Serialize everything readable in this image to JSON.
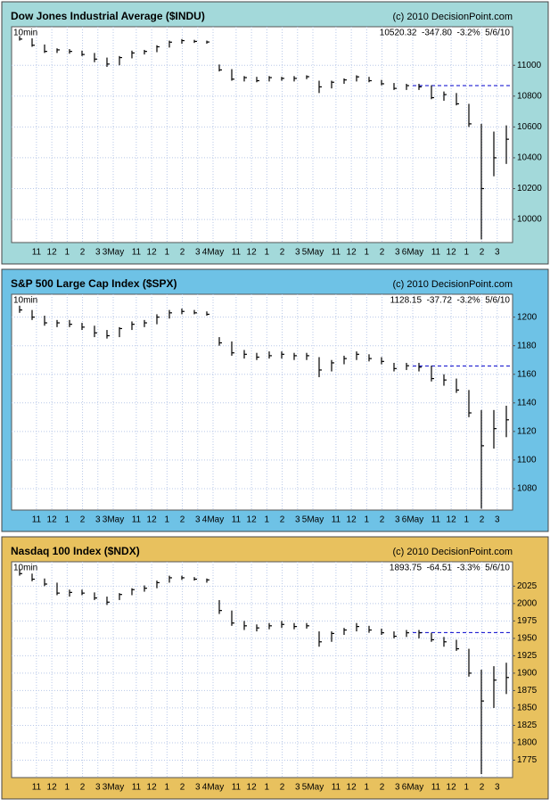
{
  "chart_data": [
    {
      "type": "hlc",
      "title": "Dow Jones Industrial Average ($INDU)",
      "copyright": "(c) 2010 DecisionPoint.com",
      "interval": "10min",
      "stats": "10520.32  -347.80  -3.2%  5/6/10",
      "panel_color": "#a3d9da",
      "color": "#000000",
      "high": [
        11190,
        11175,
        11135,
        11110,
        11105,
        11095,
        11080,
        11050,
        11060,
        11095,
        11100,
        11130,
        11160,
        11170,
        11165,
        11160,
        11005,
        10975,
        10930,
        10925,
        10930,
        10925,
        10930,
        10935,
        10900,
        10900,
        10915,
        10935,
        10925,
        10905,
        10885,
        10880,
        10880,
        10870,
        10830,
        10820,
        10750,
        10620,
        10570,
        10610
      ],
      "low": [
        11160,
        11120,
        11080,
        11080,
        11075,
        11060,
        11020,
        10990,
        11000,
        11045,
        11070,
        11085,
        11115,
        11140,
        11145,
        11140,
        10960,
        10900,
        10895,
        10890,
        10895,
        10900,
        10895,
        10910,
        10820,
        10850,
        10880,
        10895,
        10890,
        10870,
        10840,
        10840,
        10840,
        10780,
        10770,
        10740,
        10600,
        9870,
        10280,
        10360
      ],
      "close": [
        11170,
        11130,
        11090,
        11100,
        11090,
        11070,
        11040,
        11008,
        11050,
        11080,
        11090,
        11120,
        11150,
        11160,
        11155,
        11151,
        10970,
        10910,
        10920,
        10900,
        10920,
        10915,
        10915,
        10926,
        10860,
        10890,
        10905,
        10925,
        10900,
        10880,
        10850,
        10868,
        10860,
        10790,
        10810,
        10750,
        10620,
        10200,
        10400,
        10520.32
      ],
      "reference_line": {
        "value": 10868.12,
        "from_x": 32,
        "color": "#0000cc"
      },
      "xlim": [
        0,
        40
      ],
      "ylim": [
        9850,
        11250
      ],
      "yticks": [
        10000,
        10200,
        10400,
        10600,
        10800,
        11000
      ],
      "xticks": [
        {
          "value": 1.85,
          "label": "11"
        },
        {
          "value": 3.08,
          "label": "12"
        },
        {
          "value": 4.31,
          "label": "1"
        },
        {
          "value": 5.54,
          "label": "2"
        },
        {
          "value": 6.77,
          "label": "3"
        },
        {
          "value": 8,
          "label": "3May"
        },
        {
          "value": 9.85,
          "label": "11"
        },
        {
          "value": 11.08,
          "label": "12"
        },
        {
          "value": 12.31,
          "label": "1"
        },
        {
          "value": 13.54,
          "label": "2"
        },
        {
          "value": 14.77,
          "label": "3"
        },
        {
          "value": 16,
          "label": "4May"
        },
        {
          "value": 17.85,
          "label": "11"
        },
        {
          "value": 19.08,
          "label": "12"
        },
        {
          "value": 20.31,
          "label": "1"
        },
        {
          "value": 21.54,
          "label": "2"
        },
        {
          "value": 22.77,
          "label": "3"
        },
        {
          "value": 24,
          "label": "5May"
        },
        {
          "value": 25.85,
          "label": "11"
        },
        {
          "value": 27.08,
          "label": "12"
        },
        {
          "value": 28.31,
          "label": "1"
        },
        {
          "value": 29.54,
          "label": "2"
        },
        {
          "value": 30.77,
          "label": "3"
        },
        {
          "value": 32,
          "label": "6May"
        },
        {
          "value": 33.85,
          "label": "11"
        },
        {
          "value": 35.08,
          "label": "12"
        },
        {
          "value": 36.31,
          "label": "1"
        },
        {
          "value": 37.54,
          "label": "2"
        },
        {
          "value": 38.77,
          "label": "3"
        }
      ]
    },
    {
      "type": "hlc",
      "title": "S&P 500 Large Cap Index ($SPX)",
      "copyright": "(c) 2010 DecisionPoint.com",
      "interval": "10min",
      "stats": "1128.15  -37.72  -3.2%  5/6/10",
      "panel_color": "#6ec2e6",
      "color": "#000000",
      "high": [
        1208,
        1205,
        1201,
        1198,
        1198,
        1196,
        1194,
        1191,
        1193,
        1197,
        1198,
        1202,
        1205,
        1206,
        1205,
        1204,
        1186,
        1183,
        1177,
        1175,
        1176,
        1176,
        1175,
        1175,
        1172,
        1170,
        1173,
        1176,
        1174,
        1172,
        1168,
        1168,
        1168,
        1166,
        1160,
        1157,
        1149,
        1135,
        1135,
        1138
      ],
      "low": [
        1203,
        1198,
        1194,
        1193,
        1193,
        1191,
        1186,
        1185,
        1186,
        1191,
        1193,
        1195,
        1199,
        1202,
        1202,
        1201,
        1180,
        1173,
        1171,
        1170,
        1171,
        1171,
        1170,
        1170,
        1158,
        1162,
        1167,
        1170,
        1169,
        1167,
        1162,
        1163,
        1162,
        1155,
        1152,
        1147,
        1130,
        1066,
        1108,
        1116
      ],
      "close": [
        1205,
        1200,
        1196,
        1196,
        1195,
        1193,
        1189,
        1187,
        1192,
        1195,
        1196,
        1200,
        1203,
        1204,
        1203,
        1202,
        1182,
        1175,
        1174,
        1172,
        1173,
        1174,
        1173,
        1173,
        1163,
        1168,
        1171,
        1174,
        1171,
        1169,
        1164,
        1166,
        1165,
        1157,
        1156,
        1149,
        1133,
        1110,
        1122,
        1128.15
      ],
      "reference_line": {
        "value": 1165.87,
        "from_x": 32,
        "color": "#0000cc"
      },
      "xlim": [
        0,
        40
      ],
      "ylim": [
        1065,
        1216
      ],
      "yticks": [
        1080,
        1100,
        1120,
        1140,
        1160,
        1180,
        1200
      ],
      "xticks": [
        {
          "value": 1.85,
          "label": "11"
        },
        {
          "value": 3.08,
          "label": "12"
        },
        {
          "value": 4.31,
          "label": "1"
        },
        {
          "value": 5.54,
          "label": "2"
        },
        {
          "value": 6.77,
          "label": "3"
        },
        {
          "value": 8,
          "label": "3May"
        },
        {
          "value": 9.85,
          "label": "11"
        },
        {
          "value": 11.08,
          "label": "12"
        },
        {
          "value": 12.31,
          "label": "1"
        },
        {
          "value": 13.54,
          "label": "2"
        },
        {
          "value": 14.77,
          "label": "3"
        },
        {
          "value": 16,
          "label": "4May"
        },
        {
          "value": 17.85,
          "label": "11"
        },
        {
          "value": 19.08,
          "label": "12"
        },
        {
          "value": 20.31,
          "label": "1"
        },
        {
          "value": 21.54,
          "label": "2"
        },
        {
          "value": 22.77,
          "label": "3"
        },
        {
          "value": 24,
          "label": "5May"
        },
        {
          "value": 25.85,
          "label": "11"
        },
        {
          "value": 27.08,
          "label": "12"
        },
        {
          "value": 28.31,
          "label": "1"
        },
        {
          "value": 29.54,
          "label": "2"
        },
        {
          "value": 30.77,
          "label": "3"
        },
        {
          "value": 32,
          "label": "6May"
        },
        {
          "value": 33.85,
          "label": "11"
        },
        {
          "value": 35.08,
          "label": "12"
        },
        {
          "value": 36.31,
          "label": "1"
        },
        {
          "value": 37.54,
          "label": "2"
        },
        {
          "value": 38.77,
          "label": "3"
        }
      ]
    },
    {
      "type": "hlc",
      "title": "Nasdaq 100 Index ($NDX)",
      "copyright": "(c) 2010 DecisionPoint.com",
      "interval": "10min",
      "stats": "1893.75  -64.51  -3.3%  5/6/10",
      "panel_color": "#e8c15e",
      "color": "#000000",
      "high": [
        2050,
        2043,
        2036,
        2030,
        2020,
        2020,
        2016,
        2010,
        2015,
        2022,
        2026,
        2033,
        2040,
        2040,
        2038,
        2036,
        2005,
        1990,
        1975,
        1970,
        1972,
        1975,
        1972,
        1972,
        1960,
        1960,
        1965,
        1972,
        1968,
        1964,
        1960,
        1962,
        1962,
        1958,
        1952,
        1948,
        1935,
        1905,
        1910,
        1915
      ],
      "low": [
        2040,
        2032,
        2025,
        2012,
        2010,
        2012,
        2005,
        1998,
        2005,
        2012,
        2017,
        2022,
        2030,
        2034,
        2033,
        2030,
        1985,
        1968,
        1962,
        1960,
        1963,
        1965,
        1963,
        1964,
        1938,
        1945,
        1955,
        1960,
        1958,
        1955,
        1950,
        1952,
        1950,
        1945,
        1938,
        1932,
        1895,
        1755,
        1850,
        1870
      ],
      "close": [
        2043,
        2035,
        2028,
        2015,
        2016,
        2015,
        2008,
        2002,
        2013,
        2020,
        2022,
        2030,
        2037,
        2037,
        2035,
        2034,
        1990,
        1972,
        1968,
        1965,
        1968,
        1970,
        1967,
        1968,
        1945,
        1957,
        1962,
        1967,
        1962,
        1958,
        1953,
        1958,
        1958,
        1948,
        1945,
        1935,
        1900,
        1860,
        1890,
        1893.75
      ],
      "reference_line": {
        "value": 1958.26,
        "from_x": 32,
        "color": "#0000cc"
      },
      "xlim": [
        0,
        40
      ],
      "ylim": [
        1750,
        2060
      ],
      "yticks": [
        1775,
        1800,
        1825,
        1850,
        1875,
        1900,
        1925,
        1950,
        1975,
        2000,
        2025
      ],
      "xticks": [
        {
          "value": 1.85,
          "label": "11"
        },
        {
          "value": 3.08,
          "label": "12"
        },
        {
          "value": 4.31,
          "label": "1"
        },
        {
          "value": 5.54,
          "label": "2"
        },
        {
          "value": 6.77,
          "label": "3"
        },
        {
          "value": 8,
          "label": "3May"
        },
        {
          "value": 9.85,
          "label": "11"
        },
        {
          "value": 11.08,
          "label": "12"
        },
        {
          "value": 12.31,
          "label": "1"
        },
        {
          "value": 13.54,
          "label": "2"
        },
        {
          "value": 14.77,
          "label": "3"
        },
        {
          "value": 16,
          "label": "4May"
        },
        {
          "value": 17.85,
          "label": "11"
        },
        {
          "value": 19.08,
          "label": "12"
        },
        {
          "value": 20.31,
          "label": "1"
        },
        {
          "value": 21.54,
          "label": "2"
        },
        {
          "value": 22.77,
          "label": "3"
        },
        {
          "value": 24,
          "label": "5May"
        },
        {
          "value": 25.85,
          "label": "11"
        },
        {
          "value": 27.08,
          "label": "12"
        },
        {
          "value": 28.31,
          "label": "1"
        },
        {
          "value": 29.54,
          "label": "2"
        },
        {
          "value": 30.77,
          "label": "3"
        },
        {
          "value": 32,
          "label": "6May"
        },
        {
          "value": 33.85,
          "label": "11"
        },
        {
          "value": 35.08,
          "label": "12"
        },
        {
          "value": 36.31,
          "label": "1"
        },
        {
          "value": 37.54,
          "label": "2"
        },
        {
          "value": 38.77,
          "label": "3"
        }
      ]
    }
  ]
}
